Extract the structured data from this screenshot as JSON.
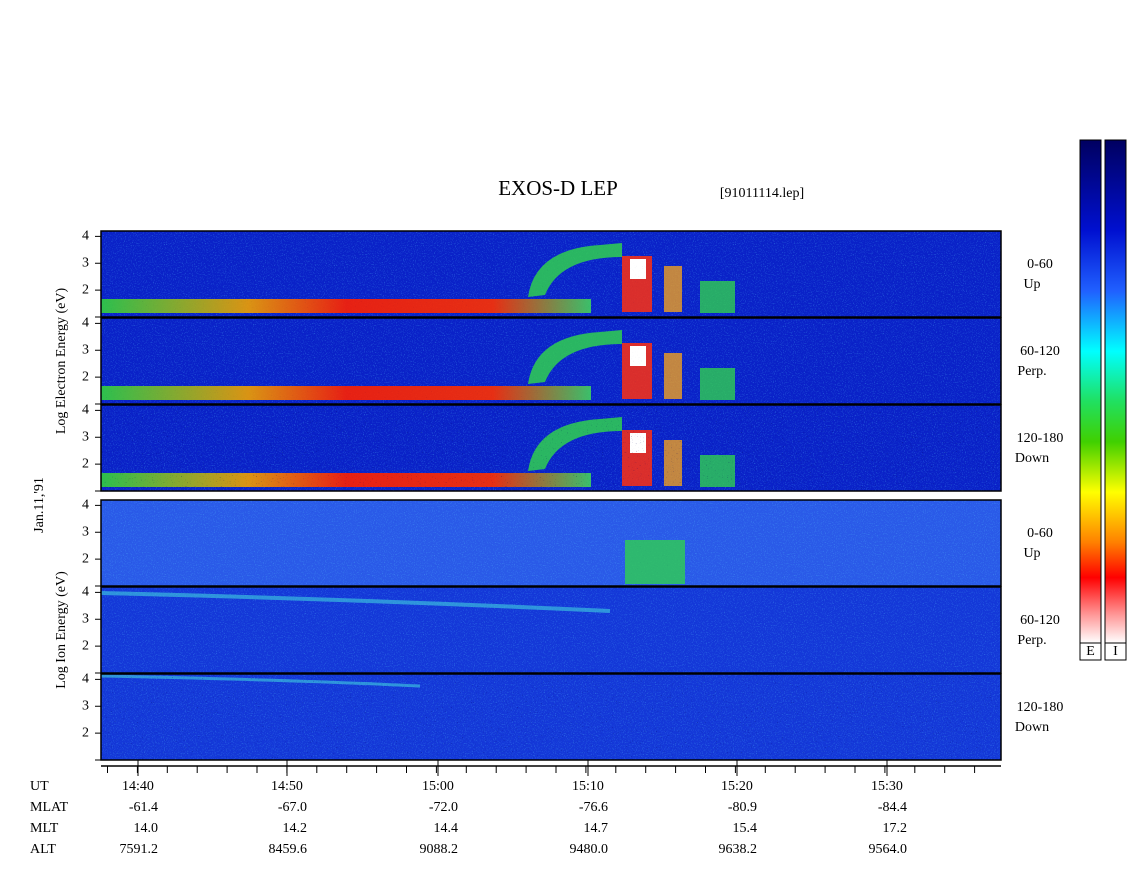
{
  "title": "EXOS-D LEP",
  "file": "[91011114.lep]",
  "date": "Jan.11,'91",
  "groups": [
    {
      "y_label": "Log  Electron  Energy (eV)",
      "ylim": [
        1,
        4.2
      ],
      "panels": [
        {
          "channel": "0-60",
          "direction": "Up",
          "yticks": [
            2,
            3,
            4
          ]
        },
        {
          "channel": "60-120",
          "direction": "Perp.",
          "yticks": [
            2,
            3,
            4
          ]
        },
        {
          "channel": "120-180",
          "direction": "Down",
          "yticks": [
            2,
            3,
            4
          ]
        }
      ]
    },
    {
      "y_label": "Log  Ion  Energy (eV)",
      "ylim": [
        1,
        4.2
      ],
      "panels": [
        {
          "channel": "0-60",
          "direction": "Up",
          "yticks": [
            2,
            3,
            4
          ]
        },
        {
          "channel": "60-120",
          "direction": "Perp.",
          "yticks": [
            2,
            3,
            4
          ]
        },
        {
          "channel": "120-180",
          "direction": "Down",
          "yticks": [
            2,
            3,
            4
          ]
        }
      ]
    }
  ],
  "colorbars": [
    "E",
    "I"
  ],
  "x_table": {
    "row_labels": [
      "UT",
      "MLAT",
      "MLT",
      "ALT"
    ],
    "columns": [
      [
        "14:40",
        "-61.4",
        "14.0",
        "7591.2"
      ],
      [
        "14:50",
        "-67.0",
        "14.2",
        "8459.6"
      ],
      [
        "15:00",
        "-72.0",
        "14.4",
        "9088.2"
      ],
      [
        "15:10",
        "-76.6",
        "14.7",
        "9480.0"
      ],
      [
        "15:20",
        "-80.9",
        "15.4",
        "9638.2"
      ],
      [
        "15:30",
        "-84.4",
        "17.2",
        "9564.0"
      ]
    ]
  }
}
